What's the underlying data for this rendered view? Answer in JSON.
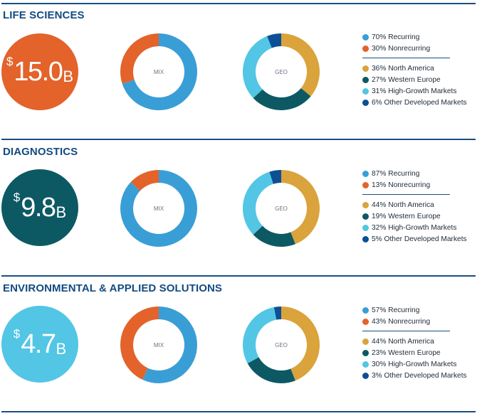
{
  "colors": {
    "recurring": "#3a9ed6",
    "nonrecurring": "#e3632b",
    "north_america": "#daa33c",
    "western_europe": "#0d5963",
    "high_growth": "#52c6e4",
    "other_developed": "#0c4f94",
    "rule": "#1a4f80",
    "title": "#134b82"
  },
  "segments": [
    {
      "title": "LIFE SCIENCES",
      "revenue": {
        "currency": "$",
        "amount": "15.0",
        "unit": "B",
        "color": "#e3632b"
      },
      "mix_label": "MIX",
      "geo_label": "GEO",
      "mix_legend": [
        "70% Recurring",
        "30% Nonrecurring"
      ],
      "geo_legend": [
        "36% North America",
        "27% Western Europe",
        "31% High-Growth Markets",
        "6% Other Developed Markets"
      ]
    },
    {
      "title": "DIAGNOSTICS",
      "revenue": {
        "currency": "$",
        "amount": "9.8",
        "unit": "B",
        "color": "#0d5963"
      },
      "mix_label": "MIX",
      "geo_label": "GEO",
      "mix_legend": [
        "87% Recurring",
        "13% Nonrecurring"
      ],
      "geo_legend": [
        "44% North America",
        "19% Western Europe",
        "32% High-Growth Markets",
        "5% Other Developed Markets"
      ]
    },
    {
      "title": "ENVIRONMENTAL & APPLIED SOLUTIONS",
      "revenue": {
        "currency": "$",
        "amount": "4.7",
        "unit": "B",
        "color": "#52c6e4"
      },
      "mix_label": "MIX",
      "geo_label": "GEO",
      "mix_legend": [
        "57% Recurring",
        "43% Nonrecurring"
      ],
      "geo_legend": [
        "44% North America",
        "23% Western Europe",
        "30% High-Growth Markets",
        "3% Other Developed Markets"
      ]
    }
  ],
  "chart_data": [
    {
      "type": "pie",
      "title": "LIFE SCIENCES",
      "label": "MIX",
      "categories": [
        "Recurring",
        "Nonrecurring"
      ],
      "values": [
        70,
        30
      ]
    },
    {
      "type": "pie",
      "title": "LIFE SCIENCES",
      "label": "GEO",
      "categories": [
        "North America",
        "Western Europe",
        "High-Growth Markets",
        "Other Developed Markets"
      ],
      "values": [
        36,
        27,
        31,
        6
      ]
    },
    {
      "type": "pie",
      "title": "DIAGNOSTICS",
      "label": "MIX",
      "categories": [
        "Recurring",
        "Nonrecurring"
      ],
      "values": [
        87,
        13
      ]
    },
    {
      "type": "pie",
      "title": "DIAGNOSTICS",
      "label": "GEO",
      "categories": [
        "North America",
        "Western Europe",
        "High-Growth Markets",
        "Other Developed Markets"
      ],
      "values": [
        44,
        19,
        32,
        5
      ]
    },
    {
      "type": "pie",
      "title": "ENVIRONMENTAL & APPLIED SOLUTIONS",
      "label": "MIX",
      "categories": [
        "Recurring",
        "Nonrecurring"
      ],
      "values": [
        57,
        43
      ]
    },
    {
      "type": "pie",
      "title": "ENVIRONMENTAL & APPLIED SOLUTIONS",
      "label": "GEO",
      "categories": [
        "North America",
        "Western Europe",
        "High-Growth Markets",
        "Other Developed Markets"
      ],
      "values": [
        44,
        23,
        30,
        3
      ]
    }
  ]
}
